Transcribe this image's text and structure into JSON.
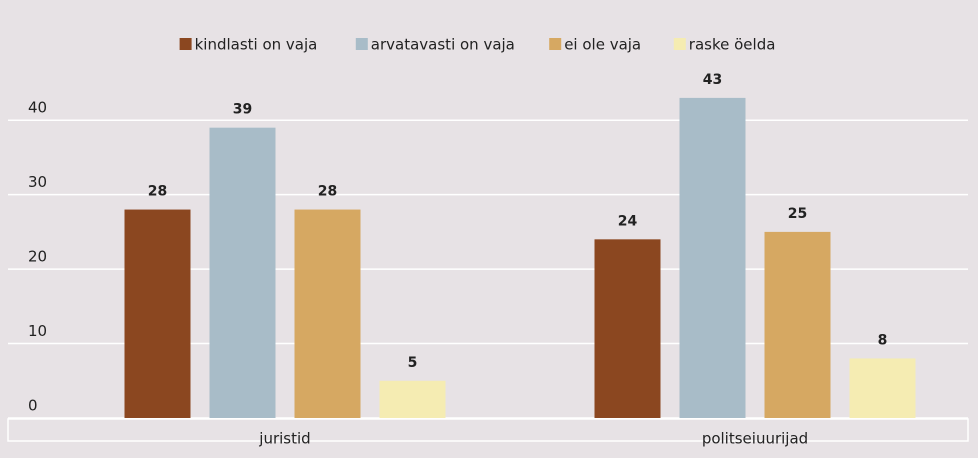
{
  "chart_data": {
    "type": "bar",
    "categories": [
      "juristid",
      "politseiuurijad"
    ],
    "series": [
      {
        "name": "kindlasti on vaja",
        "color": "#8b4720",
        "values": [
          28,
          24
        ]
      },
      {
        "name": "arvatavasti on vaja",
        "color": "#a8bcc8",
        "values": [
          39,
          43
        ]
      },
      {
        "name": "ei ole vaja",
        "color": "#d6a862",
        "values": [
          28,
          25
        ]
      },
      {
        "name": "raske öelda",
        "color": "#f5ecb2",
        "values": [
          5,
          8
        ]
      }
    ],
    "ylim": [
      0,
      45
    ],
    "yticks": [
      0,
      10,
      20,
      30,
      40
    ],
    "grid": true,
    "legend": "top"
  }
}
